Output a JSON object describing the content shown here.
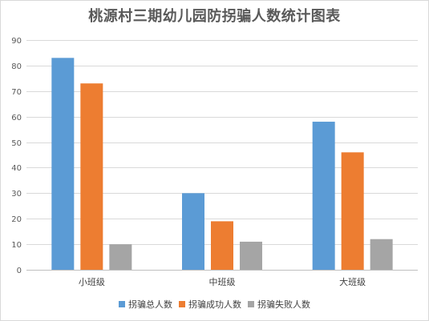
{
  "chart_data": {
    "type": "bar",
    "title": "桃源村三期幼儿园防拐骗人数统计图表",
    "categories": [
      "小班级",
      "中班级",
      "大班级"
    ],
    "series": [
      {
        "name": "拐骗总人数",
        "values": [
          83,
          30,
          58
        ],
        "color": "#5b9bd5"
      },
      {
        "name": "拐骗成功人数",
        "values": [
          73,
          19,
          46
        ],
        "color": "#ed7d31"
      },
      {
        "name": "拐骗失败人数",
        "values": [
          10,
          11,
          12
        ],
        "color": "#a5a5a5"
      }
    ],
    "ylim": [
      0,
      90
    ],
    "yticks": [
      0,
      10,
      20,
      30,
      40,
      50,
      60,
      70,
      80,
      90
    ],
    "grid": true,
    "legend_position": "bottom"
  }
}
